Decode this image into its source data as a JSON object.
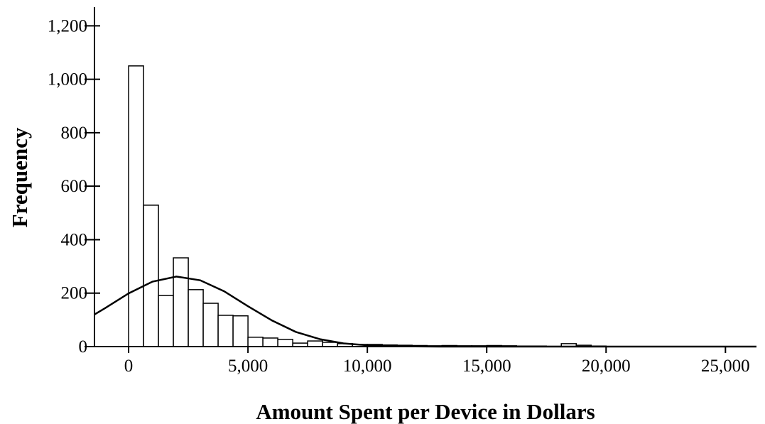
{
  "chart_data": {
    "type": "histogram",
    "xlabel": "Amount Spent per Device in Dollars",
    "ylabel": "Frequency",
    "bins": [
      0,
      625,
      1250,
      1875,
      2500,
      3125,
      3750,
      4375,
      5000,
      5625,
      6250,
      6875,
      7500,
      8125,
      8750,
      9375,
      10000,
      10625,
      11250,
      11875,
      12500,
      13125,
      13750,
      14375,
      15000,
      15625,
      16250,
      16875,
      17500,
      18125,
      18750,
      19375,
      20000
    ],
    "values": [
      1050,
      529,
      191,
      332,
      213,
      162,
      117,
      115,
      35,
      32,
      27,
      13,
      21,
      16,
      11,
      8,
      8,
      6,
      5,
      4,
      3,
      4,
      3,
      3,
      4,
      3,
      2,
      2,
      1,
      11,
      5,
      2
    ],
    "color": "#ffffff",
    "curve": {
      "x": [
        -1430,
        -1000,
        0,
        1000,
        2000,
        3000,
        4000,
        5000,
        6000,
        7000,
        8000,
        9000,
        10000,
        11000,
        12000,
        13000,
        26300
      ],
      "values": [
        120,
        143,
        199,
        243,
        262,
        248,
        207,
        151,
        98,
        55,
        28,
        12,
        5,
        2,
        0.5,
        0,
        0
      ],
      "color": "#000000"
    },
    "xlim": [
      -1430,
      26300
    ],
    "ylim": [
      0,
      1270
    ],
    "xticks": [
      0,
      {
        "value": 5000,
        "label": "5,000"
      },
      {
        "value": 10000,
        "label": "10,000"
      },
      {
        "value": 15000,
        "label": "15,000"
      },
      {
        "value": 20000,
        "label": "20,000"
      },
      {
        "value": 25000,
        "label": "25,000"
      }
    ],
    "yticks": [
      0,
      200,
      400,
      600,
      800,
      {
        "value": 1000,
        "label": "1,000"
      },
      {
        "value": 1200,
        "label": "1,200"
      }
    ]
  }
}
